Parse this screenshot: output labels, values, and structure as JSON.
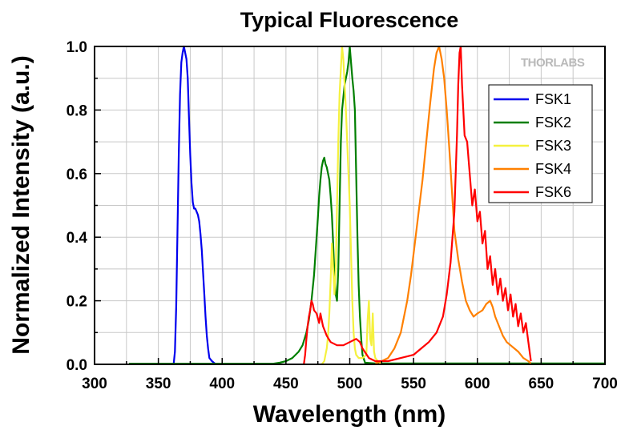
{
  "chart_data": {
    "type": "line",
    "title": "Typical Fluorescence",
    "xlabel": "Wavelength (nm)",
    "ylabel": "Normalized Intensity (a.u.)",
    "xlim": [
      300,
      700
    ],
    "ylim": [
      0,
      1.0
    ],
    "x_ticks": [
      "300",
      "350",
      "400",
      "450",
      "500",
      "550",
      "600",
      "650",
      "700"
    ],
    "y_ticks": [
      "0.0",
      "0.2",
      "0.4",
      "0.6",
      "0.8",
      "1.0"
    ],
    "grid": true,
    "legend_position": "top-right",
    "watermark": "THORLABS",
    "series": [
      {
        "name": "FSK1",
        "color": "#0000ee",
        "points": [
          [
            362,
            0
          ],
          [
            363,
            0.04
          ],
          [
            364,
            0.18
          ],
          [
            365,
            0.42
          ],
          [
            366,
            0.66
          ],
          [
            367,
            0.85
          ],
          [
            368,
            0.95
          ],
          [
            369,
            0.98
          ],
          [
            370,
            1.0
          ],
          [
            371,
            0.98
          ],
          [
            372,
            0.96
          ],
          [
            373,
            0.9
          ],
          [
            374,
            0.78
          ],
          [
            375,
            0.66
          ],
          [
            376,
            0.57
          ],
          [
            377,
            0.51
          ],
          [
            378,
            0.49
          ],
          [
            379,
            0.49
          ],
          [
            380,
            0.48
          ],
          [
            381,
            0.47
          ],
          [
            382,
            0.45
          ],
          [
            383,
            0.41
          ],
          [
            384,
            0.36
          ],
          [
            385,
            0.29
          ],
          [
            386,
            0.22
          ],
          [
            387,
            0.15
          ],
          [
            388,
            0.09
          ],
          [
            389,
            0.05
          ],
          [
            390,
            0.02
          ],
          [
            392,
            0.01
          ],
          [
            395,
            0
          ]
        ]
      },
      {
        "name": "FSK2",
        "color": "#007f00",
        "points": [
          [
            327,
            0.002
          ],
          [
            440,
            0.002
          ],
          [
            445,
            0.005
          ],
          [
            450,
            0.01
          ],
          [
            455,
            0.02
          ],
          [
            460,
            0.04
          ],
          [
            463,
            0.06
          ],
          [
            466,
            0.1
          ],
          [
            468,
            0.14
          ],
          [
            470,
            0.2
          ],
          [
            472,
            0.28
          ],
          [
            474,
            0.4
          ],
          [
            475,
            0.46
          ],
          [
            476,
            0.53
          ],
          [
            477,
            0.58
          ],
          [
            478,
            0.62
          ],
          [
            479,
            0.64
          ],
          [
            480,
            0.65
          ],
          [
            481,
            0.63
          ],
          [
            482,
            0.62
          ],
          [
            483,
            0.6
          ],
          [
            484,
            0.58
          ],
          [
            485,
            0.53
          ],
          [
            486,
            0.47
          ],
          [
            487,
            0.38
          ],
          [
            488,
            0.28
          ],
          [
            489,
            0.22
          ],
          [
            490,
            0.2
          ],
          [
            491,
            0.3
          ],
          [
            492,
            0.5
          ],
          [
            493,
            0.7
          ],
          [
            494,
            0.8
          ],
          [
            495,
            0.84
          ],
          [
            496,
            0.88
          ],
          [
            497,
            0.9
          ],
          [
            498,
            0.92
          ],
          [
            499,
            0.95
          ],
          [
            500,
            1.0
          ],
          [
            501,
            0.95
          ],
          [
            502,
            0.9
          ],
          [
            503,
            0.86
          ],
          [
            504,
            0.8
          ],
          [
            505,
            0.6
          ],
          [
            506,
            0.4
          ],
          [
            507,
            0.25
          ],
          [
            508,
            0.15
          ],
          [
            509,
            0.08
          ],
          [
            510,
            0.03
          ],
          [
            512,
            0.005
          ],
          [
            520,
            0.003
          ],
          [
            700,
            0.003
          ]
        ]
      },
      {
        "name": "FSK3",
        "color": "#f5f13e",
        "points": [
          [
            478,
            0
          ],
          [
            480,
            0.01
          ],
          [
            481,
            0.03
          ],
          [
            482,
            0.05
          ],
          [
            483,
            0.09
          ],
          [
            484,
            0.16
          ],
          [
            485,
            0.26
          ],
          [
            486,
            0.38
          ],
          [
            487,
            0.3
          ],
          [
            488,
            0.22
          ],
          [
            489,
            0.3
          ],
          [
            490,
            0.5
          ],
          [
            491,
            0.7
          ],
          [
            492,
            0.85
          ],
          [
            493,
            0.93
          ],
          [
            494,
            1.0
          ],
          [
            495,
            0.96
          ],
          [
            496,
            0.88
          ],
          [
            497,
            0.8
          ],
          [
            498,
            0.7
          ],
          [
            499,
            0.6
          ],
          [
            500,
            0.5
          ],
          [
            501,
            0.35
          ],
          [
            502,
            0.2
          ],
          [
            503,
            0.1
          ],
          [
            504,
            0.05
          ],
          [
            505,
            0.03
          ],
          [
            507,
            0.02
          ],
          [
            510,
            0.02
          ],
          [
            513,
            0.03
          ],
          [
            514,
            0.14
          ],
          [
            515,
            0.2
          ],
          [
            516,
            0.08
          ],
          [
            517,
            0.06
          ],
          [
            518,
            0.16
          ],
          [
            519,
            0.04
          ],
          [
            520,
            0.02
          ],
          [
            522,
            0.01
          ],
          [
            525,
            0
          ]
        ]
      },
      {
        "name": "FSK4",
        "color": "#ff8000",
        "points": [
          [
            520,
            0.003
          ],
          [
            525,
            0.01
          ],
          [
            530,
            0.02
          ],
          [
            535,
            0.05
          ],
          [
            540,
            0.1
          ],
          [
            545,
            0.2
          ],
          [
            548,
            0.28
          ],
          [
            551,
            0.38
          ],
          [
            554,
            0.48
          ],
          [
            557,
            0.58
          ],
          [
            560,
            0.7
          ],
          [
            563,
            0.82
          ],
          [
            566,
            0.93
          ],
          [
            568,
            0.98
          ],
          [
            570,
            1.0
          ],
          [
            572,
            0.96
          ],
          [
            574,
            0.9
          ],
          [
            576,
            0.8
          ],
          [
            578,
            0.68
          ],
          [
            580,
            0.55
          ],
          [
            582,
            0.42
          ],
          [
            585,
            0.33
          ],
          [
            588,
            0.26
          ],
          [
            591,
            0.2
          ],
          [
            594,
            0.17
          ],
          [
            597,
            0.15
          ],
          [
            600,
            0.16
          ],
          [
            604,
            0.17
          ],
          [
            607,
            0.19
          ],
          [
            610,
            0.2
          ],
          [
            612,
            0.18
          ],
          [
            614,
            0.15
          ],
          [
            617,
            0.12
          ],
          [
            620,
            0.09
          ],
          [
            623,
            0.07
          ],
          [
            626,
            0.06
          ],
          [
            629,
            0.05
          ],
          [
            632,
            0.04
          ],
          [
            636,
            0.02
          ],
          [
            640,
            0.01
          ],
          [
            642,
            0.003
          ]
        ]
      },
      {
        "name": "FSK6",
        "color": "#ff0000",
        "points": [
          [
            464,
            0
          ],
          [
            465,
            0.03
          ],
          [
            466,
            0.08
          ],
          [
            467,
            0.12
          ],
          [
            468,
            0.15
          ],
          [
            469,
            0.17
          ],
          [
            470,
            0.2
          ],
          [
            471,
            0.19
          ],
          [
            472,
            0.17
          ],
          [
            474,
            0.16
          ],
          [
            476,
            0.13
          ],
          [
            477,
            0.16
          ],
          [
            479,
            0.12
          ],
          [
            482,
            0.09
          ],
          [
            485,
            0.07
          ],
          [
            490,
            0.06
          ],
          [
            495,
            0.06
          ],
          [
            500,
            0.07
          ],
          [
            505,
            0.08
          ],
          [
            508,
            0.07
          ],
          [
            510,
            0.05
          ],
          [
            515,
            0.02
          ],
          [
            520,
            0.01
          ],
          [
            530,
            0.01
          ],
          [
            540,
            0.02
          ],
          [
            550,
            0.03
          ],
          [
            556,
            0.05
          ],
          [
            562,
            0.07
          ],
          [
            568,
            0.1
          ],
          [
            573,
            0.15
          ],
          [
            576,
            0.22
          ],
          [
            579,
            0.32
          ],
          [
            582,
            0.48
          ],
          [
            584,
            0.72
          ],
          [
            585,
            0.88
          ],
          [
            586,
            0.98
          ],
          [
            587,
            1.0
          ],
          [
            588,
            0.88
          ],
          [
            589,
            0.8
          ],
          [
            590,
            0.72
          ],
          [
            592,
            0.7
          ],
          [
            594,
            0.6
          ],
          [
            596,
            0.5
          ],
          [
            598,
            0.55
          ],
          [
            600,
            0.45
          ],
          [
            602,
            0.48
          ],
          [
            604,
            0.38
          ],
          [
            606,
            0.42
          ],
          [
            608,
            0.3
          ],
          [
            610,
            0.34
          ],
          [
            612,
            0.25
          ],
          [
            614,
            0.3
          ],
          [
            616,
            0.22
          ],
          [
            618,
            0.27
          ],
          [
            620,
            0.2
          ],
          [
            622,
            0.24
          ],
          [
            624,
            0.17
          ],
          [
            626,
            0.22
          ],
          [
            628,
            0.15
          ],
          [
            630,
            0.19
          ],
          [
            632,
            0.12
          ],
          [
            634,
            0.16
          ],
          [
            636,
            0.1
          ],
          [
            638,
            0.13
          ],
          [
            640,
            0.07
          ],
          [
            641,
            0.04
          ],
          [
            642,
            0.01
          ]
        ]
      }
    ]
  }
}
